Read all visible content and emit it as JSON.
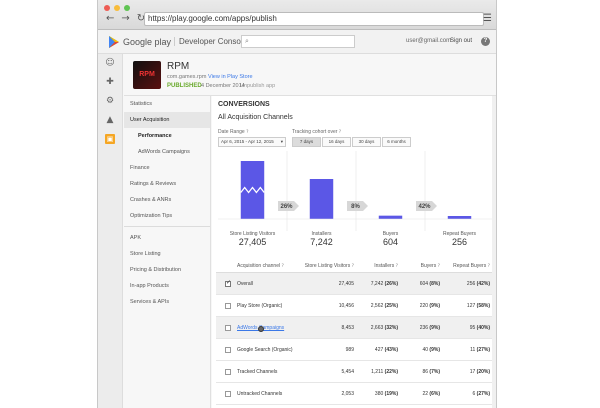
{
  "browser": {
    "url": "https://play.google.com/apps/publish",
    "back_glyph": "←",
    "forward_glyph": "→",
    "reload_glyph": "↻",
    "menu_glyph": "☰",
    "dot_colors": [
      "#ee5c54",
      "#f8bc3a",
      "#5fc453"
    ]
  },
  "header": {
    "brand": "Google play",
    "console": "Developer Console",
    "email": "user@gmail.com",
    "signout": "Sign out",
    "help": "?",
    "search_icon": "⌕"
  },
  "rail": [
    {
      "icon": "android-icon",
      "glyph": "☺"
    },
    {
      "icon": "games-icon",
      "glyph": "✚"
    },
    {
      "icon": "gear-icon",
      "glyph": "⚙"
    },
    {
      "icon": "alert-icon",
      "glyph": "▲"
    },
    {
      "icon": "app-icon",
      "glyph": "▣"
    }
  ],
  "app": {
    "icon_text": "RPM",
    "name": "RPM",
    "package": "com.games.rpm",
    "view_link": "View in Play Store",
    "status": "PUBLISHED",
    "date": "4 December 2014",
    "unpublish": "Unpublish app"
  },
  "sidebar": {
    "items": [
      {
        "label": "Statistics"
      },
      {
        "label": "User Acquisition"
      },
      {
        "label": "Performance"
      },
      {
        "label": "AdWords Campaigns"
      },
      {
        "label": "Finance"
      },
      {
        "label": "Ratings & Reviews"
      },
      {
        "label": "Crashes & ANRs"
      },
      {
        "label": "Optimization Tips"
      },
      {
        "label": "APK"
      },
      {
        "label": "Store Listing"
      },
      {
        "label": "Pricing & Distribution"
      },
      {
        "label": "In-app Products"
      },
      {
        "label": "Services & APIs"
      }
    ]
  },
  "conversions": {
    "title": "CONVERSIONS",
    "subtitle": "All Acquisition Channels",
    "date_range_label": "Date Range",
    "date_range_value": "Apr 6, 2015 - Apr 12, 2015",
    "cohort_label": "Tracking cohort over",
    "cohort_options": [
      "7 days",
      "16 days",
      "30 days",
      "6 months"
    ],
    "cohort_selected": "7 days"
  },
  "chart_data": {
    "type": "bar",
    "categories": [
      "Store Listing Visitors",
      "Installers",
      "Buyers",
      "Repeat Buyers"
    ],
    "values": [
      27405,
      7242,
      604,
      256
    ],
    "display_values": [
      "27,405",
      "7,242",
      "604",
      "256"
    ],
    "conversion_rates": [
      "26%",
      "8%",
      "42%"
    ],
    "bar_color": "#5b57e6",
    "broken_axis_on_first_bar": true
  },
  "table": {
    "headers": {
      "channel": "Acquisition channel",
      "visitors": "Store Listing Visitors",
      "installers": "Installers",
      "buyers": "Buyers",
      "repeat": "Repeat Buyers",
      "info_glyph": "?"
    },
    "rows": [
      {
        "name": "Overall",
        "checked": true,
        "shaded": true,
        "link": false,
        "visitors": "27,405",
        "installers": "7,242",
        "installers_pct": "(26%)",
        "buyers": "604",
        "buyers_pct": "(8%)",
        "repeat": "256",
        "repeat_pct": "(42%)"
      },
      {
        "name": "Play Store (Organic)",
        "checked": false,
        "shaded": false,
        "link": false,
        "visitors": "10,456",
        "installers": "2,562",
        "installers_pct": "(25%)",
        "buyers": "220",
        "buyers_pct": "(9%)",
        "repeat": "127",
        "repeat_pct": "(58%)"
      },
      {
        "name": "AdWords Campaigns",
        "checked": false,
        "shaded": true,
        "link": true,
        "visitors": "8,453",
        "installers": "2,663",
        "installers_pct": "(32%)",
        "buyers": "236",
        "buyers_pct": "(9%)",
        "repeat": "95",
        "repeat_pct": "(40%)"
      },
      {
        "name": "Google Search (Organic)",
        "checked": false,
        "shaded": false,
        "link": false,
        "visitors": "989",
        "installers": "427",
        "installers_pct": "(43%)",
        "buyers": "40",
        "buyers_pct": "(9%)",
        "repeat": "11",
        "repeat_pct": "(27%)"
      },
      {
        "name": "Tracked Channels",
        "checked": false,
        "shaded": false,
        "link": false,
        "visitors": "5,454",
        "installers": "1,211",
        "installers_pct": "(22%)",
        "buyers": "86",
        "buyers_pct": "(7%)",
        "repeat": "17",
        "repeat_pct": "(20%)"
      },
      {
        "name": "Untracked Channels",
        "checked": false,
        "shaded": false,
        "link": false,
        "visitors": "2,053",
        "installers": "380",
        "installers_pct": "(19%)",
        "buyers": "22",
        "buyers_pct": "(6%)",
        "repeat": "6",
        "repeat_pct": "(27%)"
      }
    ]
  }
}
